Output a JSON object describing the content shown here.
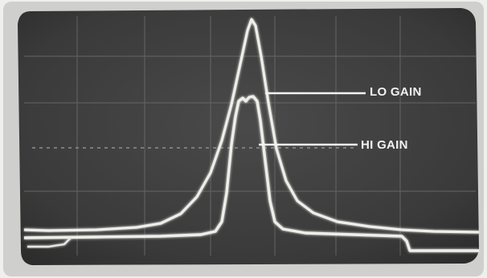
{
  "photo": {
    "annotations": {
      "lo_gain": "LO GAIN",
      "hi_gain": "HI GAIN"
    },
    "colors": {
      "screen": "#3b3b3b",
      "bezel": "#d4d4d2",
      "trace": "#eeeeea",
      "grid": "#6a6a6a"
    }
  }
}
